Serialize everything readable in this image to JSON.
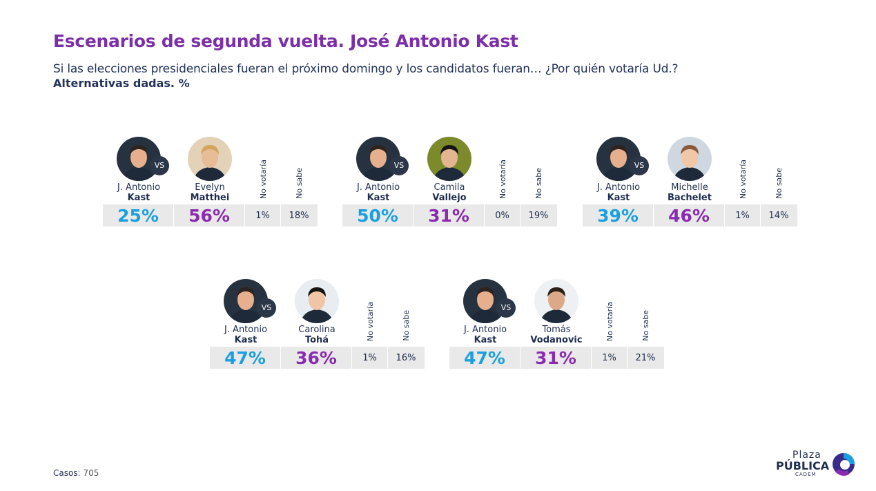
{
  "header": {
    "title": "Escenarios de segunda vuelta. José Antonio Kast",
    "subtitle": "Si las elecciones presidenciales fueran el próximo domingo y los candidatos fueran… ¿Por quién votaría Ud.?",
    "subtitle2": "Alternativas dadas. %"
  },
  "labels": {
    "vs": "VS",
    "no_votaria": "No votaría",
    "no_sabe": "No sabe"
  },
  "footer": {
    "casos_label": "Casos",
    "casos_value": ": 705"
  },
  "logo": {
    "plaza": "Plaza",
    "publica": "PÚBLICA",
    "cadem": "CADEM"
  },
  "colors": {
    "kast": "#1aa0e0",
    "rival": "#8a2bb0",
    "title": "#7b2fa8"
  },
  "chart_data": {
    "type": "table",
    "scenarios": [
      {
        "kast_first": "J. Antonio",
        "kast_last": "Kast",
        "kast_pct": "25%",
        "rival_first": "Evelyn",
        "rival_last": "Matthei",
        "rival_pct": "56%",
        "no_votaria": "1%",
        "no_sabe": "18%"
      },
      {
        "kast_first": "J. Antonio",
        "kast_last": "Kast",
        "kast_pct": "50%",
        "rival_first": "Camila",
        "rival_last": "Vallejo",
        "rival_pct": "31%",
        "no_votaria": "0%",
        "no_sabe": "19%"
      },
      {
        "kast_first": "J. Antonio",
        "kast_last": "Kast",
        "kast_pct": "39%",
        "rival_first": "Michelle",
        "rival_last": "Bachelet",
        "rival_pct": "46%",
        "no_votaria": "1%",
        "no_sabe": "14%"
      },
      {
        "kast_first": "J. Antonio",
        "kast_last": "Kast",
        "kast_pct": "47%",
        "rival_first": "Carolina",
        "rival_last": "Tohá",
        "rival_pct": "36%",
        "no_votaria": "1%",
        "no_sabe": "16%"
      },
      {
        "kast_first": "J. Antonio",
        "kast_last": "Kast",
        "kast_pct": "47%",
        "rival_first": "Tomás",
        "rival_last": "Vodanovic",
        "rival_pct": "31%",
        "no_votaria": "1%",
        "no_sabe": "21%"
      }
    ]
  }
}
